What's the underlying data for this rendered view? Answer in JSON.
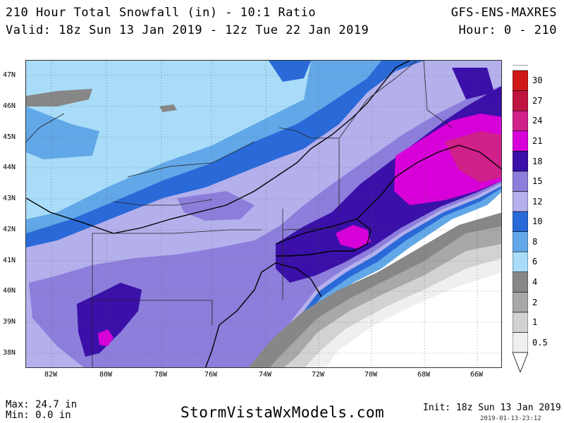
{
  "header": {
    "title": "210 Hour Total Snowfall (in) - 10:1 Ratio",
    "valid": "Valid: 18z Sun 13 Jan 2019 - 12z Tue 22 Jan 2019",
    "model": "GFS-ENS-MAXRES",
    "hours": "Hour: 0 - 210"
  },
  "map": {
    "lat_labels": [
      "47N",
      "46N",
      "45N",
      "44N",
      "43N",
      "42N",
      "41N",
      "40N",
      "39N",
      "38N"
    ],
    "lon_labels": [
      "82W",
      "80W",
      "78W",
      "76W",
      "74W",
      "72W",
      "70W",
      "68W",
      "66W"
    ]
  },
  "legend": {
    "levels": [
      "0.5",
      "1",
      "2",
      "4",
      "6",
      "8",
      "10",
      "12",
      "15",
      "18",
      "21",
      "24",
      "27",
      "30"
    ],
    "colors": [
      "#efefef",
      "#d2d2d2",
      "#a8a8a8",
      "#878787",
      "#a9dcf8",
      "#62a8e8",
      "#2a6ad8",
      "#b4b0ec",
      "#8d7edc",
      "#3a10a8",
      "#d800d8",
      "#d0208a",
      "#c01440",
      "#d01818"
    ]
  },
  "footer": {
    "max": "Max: 24.7 in",
    "min": "Min: 0.0 in",
    "site": "StormVistaWxModels.com",
    "init": "Init: 18z Sun 13 Jan 2019",
    "stamp": "2019-01-13-23:12"
  }
}
